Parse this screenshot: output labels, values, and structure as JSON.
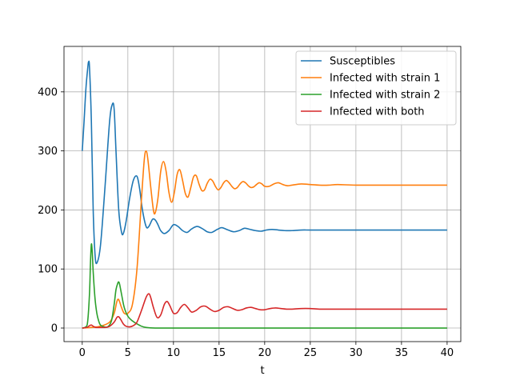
{
  "chart_data": {
    "type": "line",
    "title": "",
    "xlabel": "t",
    "ylabel": "",
    "xlim": [
      -2,
      41.5
    ],
    "ylim": [
      -23,
      477
    ],
    "xticks": [
      0,
      5,
      10,
      15,
      20,
      25,
      30,
      35,
      40
    ],
    "yticks": [
      0,
      100,
      200,
      300,
      400
    ],
    "grid": true,
    "legend_position": "top-right",
    "series": [
      {
        "name": "Susceptibles",
        "color": "#1f77b4",
        "x": [
          0,
          0.2,
          0.4,
          0.6,
          0.7,
          0.8,
          1.0,
          1.2,
          1.4,
          1.6,
          2.0,
          2.5,
          3.0,
          3.3,
          3.5,
          3.7,
          4.0,
          4.3,
          4.5,
          4.8,
          5.2,
          5.6,
          6.0,
          6.3,
          6.6,
          7.0,
          7.3,
          7.7,
          8.0,
          8.3,
          8.6,
          9.0,
          9.5,
          10.0,
          10.5,
          11.0,
          11.5,
          12.0,
          12.6,
          13.2,
          13.7,
          14.2,
          14.8,
          15.3,
          16.0,
          16.6,
          17.2,
          17.8,
          18.4,
          19.0,
          19.6,
          20.2,
          20.8,
          21.5,
          22.2,
          23,
          24,
          25,
          27,
          30,
          33,
          36,
          40
        ],
        "y": [
          300,
          350,
          405,
          440,
          451,
          440,
          350,
          200,
          125,
          110,
          140,
          240,
          350,
          379,
          370,
          300,
          200,
          163,
          160,
          180,
          220,
          250,
          257,
          235,
          200,
          172,
          172,
          184,
          183,
          175,
          165,
          160,
          165,
          175,
          172,
          165,
          162,
          168,
          172,
          168,
          163,
          162,
          167,
          170,
          166,
          163,
          165,
          169,
          167,
          165,
          164,
          166,
          167,
          166,
          165,
          165,
          166,
          166,
          166,
          166,
          166,
          166,
          166
        ]
      },
      {
        "name": "Infected with strain 1",
        "color": "#ff7f0e",
        "x": [
          0,
          1,
          2,
          3,
          3.5,
          3.8,
          4.0,
          4.3,
          4.6,
          5.0,
          5.5,
          6.0,
          6.5,
          6.8,
          7.0,
          7.2,
          7.5,
          7.8,
          8.0,
          8.3,
          8.6,
          8.9,
          9.2,
          9.5,
          9.8,
          10.1,
          10.4,
          10.7,
          11.0,
          11.3,
          11.6,
          11.9,
          12.2,
          12.5,
          12.8,
          13.1,
          13.4,
          13.7,
          14.0,
          14.3,
          14.6,
          14.9,
          15.2,
          15.5,
          15.8,
          16.1,
          16.4,
          16.7,
          17.0,
          17.3,
          17.6,
          17.9,
          18.2,
          18.5,
          18.8,
          19.1,
          19.4,
          19.7,
          20.0,
          20.5,
          21.0,
          21.5,
          22.0,
          22.5,
          23.0,
          24,
          25,
          26,
          27,
          28,
          30,
          33,
          36,
          40
        ],
        "y": [
          0,
          1,
          3,
          10,
          25,
          45,
          48,
          35,
          25,
          25,
          40,
          100,
          220,
          285,
          300,
          285,
          240,
          200,
          195,
          220,
          265,
          282,
          265,
          230,
          213,
          230,
          260,
          268,
          250,
          228,
          222,
          238,
          256,
          258,
          244,
          233,
          234,
          245,
          252,
          249,
          240,
          234,
          238,
          246,
          250,
          246,
          240,
          236,
          238,
          244,
          248,
          246,
          241,
          238,
          239,
          243,
          246,
          244,
          240,
          240,
          244,
          246,
          243,
          241,
          242,
          244,
          243,
          242,
          242,
          243,
          242,
          242,
          242,
          242
        ]
      },
      {
        "name": "Infected with strain 2",
        "color": "#2ca02c",
        "x": [
          0,
          0.4,
          0.6,
          0.8,
          0.9,
          1.0,
          1.1,
          1.2,
          1.4,
          1.6,
          1.8,
          2.0,
          2.4,
          2.8,
          3.2,
          3.5,
          3.7,
          3.9,
          4.0,
          4.1,
          4.3,
          4.6,
          5.0,
          5.5,
          6.0,
          6.5,
          7.0,
          8.0,
          10,
          15,
          20,
          25,
          30,
          35,
          40
        ],
        "y": [
          0,
          2,
          12,
          60,
          110,
          142,
          128,
          95,
          50,
          25,
          12,
          5,
          2,
          2,
          12,
          40,
          65,
          76,
          78,
          74,
          58,
          35,
          20,
          12,
          7,
          3,
          1,
          0,
          0,
          0,
          0,
          0,
          0,
          0,
          0
        ]
      },
      {
        "name": "Infected with both",
        "color": "#d62728",
        "x": [
          0,
          0.5,
          0.8,
          1.0,
          1.2,
          1.5,
          2.0,
          2.5,
          3.0,
          3.5,
          3.8,
          4.0,
          4.2,
          4.5,
          4.8,
          5.2,
          5.6,
          6.0,
          6.5,
          7.0,
          7.3,
          7.5,
          7.8,
          8.2,
          8.6,
          9.0,
          9.3,
          9.6,
          10.0,
          10.4,
          10.8,
          11.2,
          11.6,
          12.0,
          12.5,
          13.0,
          13.5,
          14.0,
          14.5,
          15.0,
          15.5,
          16.0,
          16.5,
          17.0,
          17.5,
          18.0,
          18.5,
          19.0,
          19.5,
          20.0,
          20.6,
          21.2,
          21.8,
          22.4,
          23.0,
          24,
          25,
          26,
          28,
          30,
          33,
          36,
          40
        ],
        "y": [
          0,
          1,
          4,
          5,
          3,
          1,
          1,
          1,
          3,
          10,
          18,
          19,
          15,
          7,
          3,
          2,
          4,
          10,
          30,
          52,
          58,
          52,
          35,
          18,
          22,
          40,
          45,
          38,
          25,
          26,
          35,
          40,
          34,
          27,
          30,
          36,
          37,
          32,
          28,
          30,
          35,
          36,
          33,
          30,
          31,
          34,
          35,
          33,
          31,
          31,
          33,
          34,
          33,
          32,
          32,
          33,
          33,
          32,
          32,
          32,
          32,
          32,
          32
        ]
      }
    ]
  }
}
